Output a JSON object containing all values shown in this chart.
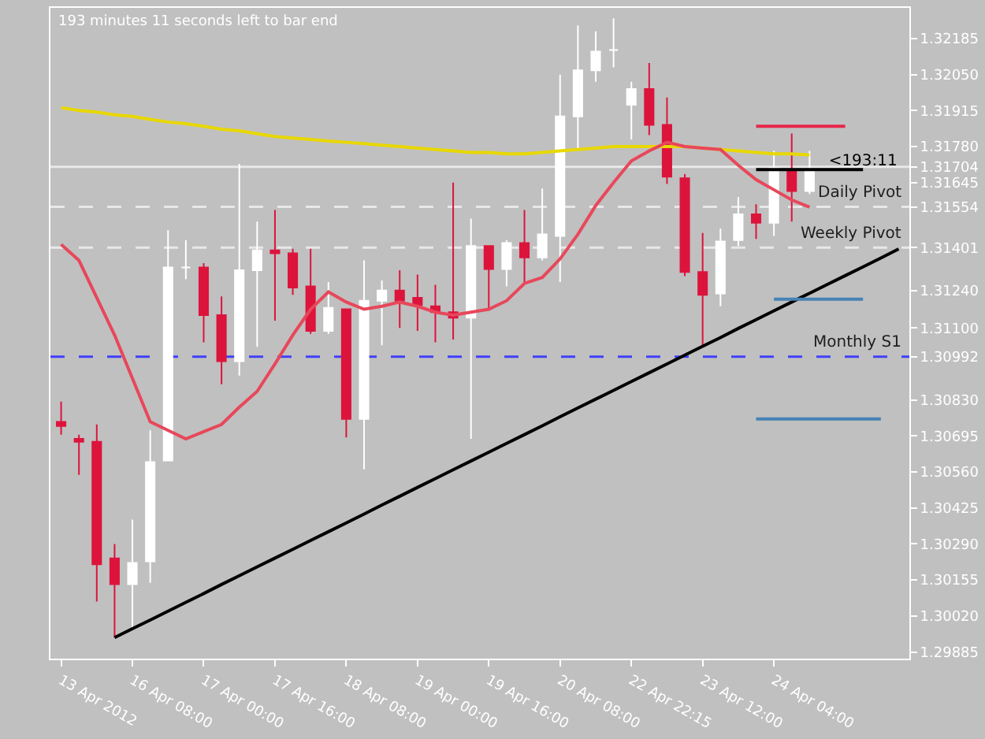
{
  "chart_data": {
    "type": "candlestick",
    "categories": [
      "13 Apr 2012",
      null,
      null,
      null,
      "16 Apr 08:00",
      null,
      null,
      null,
      "17 Apr 00:00",
      null,
      null,
      null,
      "17 Apr 16:00",
      null,
      null,
      null,
      "18 Apr 08:00",
      null,
      null,
      null,
      "19 Apr 00:00",
      null,
      null,
      null,
      "19 Apr 16:00",
      null,
      null,
      null,
      "20 Apr 08:00",
      null,
      null,
      null,
      "22 Apr 22:15",
      null,
      null,
      null,
      "23 Apr 12:00",
      null,
      null,
      null,
      "24 Apr 04:00",
      null,
      null,
      null,
      null,
      null,
      null,
      null
    ],
    "ohlc": [
      [
        1.30748,
        1.30824,
        1.307,
        1.30732
      ],
      [
        1.30684,
        1.307,
        1.30549,
        1.30673
      ],
      [
        1.30673,
        1.30738,
        1.30074,
        1.30214
      ],
      [
        1.30236,
        1.3029,
        1.29939,
        1.30139
      ],
      [
        1.30139,
        1.30381,
        1.29971,
        1.30219
      ],
      [
        1.30225,
        1.30716,
        1.30144,
        1.30597
      ],
      [
        1.30603,
        1.31467,
        1.30603,
        1.31327
      ],
      [
        1.31327,
        1.31429,
        1.31283,
        1.31327
      ],
      [
        1.31327,
        1.31343,
        1.31046,
        1.31148
      ],
      [
        1.31148,
        1.31218,
        1.30889,
        1.30975
      ],
      [
        1.30975,
        1.31715,
        1.30921,
        1.31316
      ],
      [
        1.31316,
        1.31499,
        1.31029,
        1.31391
      ],
      [
        1.31391,
        1.31542,
        1.31127,
        1.3138
      ],
      [
        1.3138,
        1.31397,
        1.31224,
        1.31251
      ],
      [
        1.31256,
        1.31397,
        1.31078,
        1.31089
      ],
      [
        1.31089,
        1.31272,
        1.31078,
        1.31175
      ],
      [
        1.3117,
        1.3117,
        1.30689,
        1.30759
      ],
      [
        1.30759,
        1.31353,
        1.3057,
        1.31202
      ],
      [
        1.31202,
        1.31278,
        1.31035,
        1.3124
      ],
      [
        1.3124,
        1.31316,
        1.311,
        1.31202
      ],
      [
        1.31213,
        1.313,
        1.31089,
        1.31186
      ],
      [
        1.31181,
        1.31262,
        1.31046,
        1.31159
      ],
      [
        1.31159,
        1.31645,
        1.31056,
        1.31138
      ],
      [
        1.31138,
        1.3151,
        1.30684,
        1.31407
      ],
      [
        1.31407,
        1.31407,
        1.31165,
        1.31321
      ],
      [
        1.31321,
        1.31429,
        1.31256,
        1.31418
      ],
      [
        1.31418,
        1.31542,
        1.31272,
        1.31364
      ],
      [
        1.31364,
        1.31623,
        1.31353,
        1.31451
      ],
      [
        1.31445,
        1.3205,
        1.31272,
        1.31893
      ],
      [
        1.31893,
        1.32234,
        1.31764,
        1.32066
      ],
      [
        1.32066,
        1.32212,
        1.32023,
        1.32136
      ],
      [
        1.32142,
        1.32261,
        1.32077,
        1.32142
      ],
      [
        1.31937,
        1.32023,
        1.31807,
        1.31996
      ],
      [
        1.31996,
        1.32093,
        1.31823,
        1.31861
      ],
      [
        1.31861,
        1.31964,
        1.3164,
        1.31667
      ],
      [
        1.31661,
        1.31677,
        1.31294,
        1.3131
      ],
      [
        1.3131,
        1.31456,
        1.31029,
        1.31224
      ],
      [
        1.31229,
        1.31472,
        1.31181,
        1.31424
      ],
      [
        1.31429,
        1.31591,
        1.31407,
        1.31526
      ],
      [
        1.31526,
        1.31564,
        1.31434,
        1.31494
      ],
      [
        1.31494,
        1.31764,
        1.31445,
        1.31699
      ],
      [
        1.31694,
        1.31829,
        1.31499,
        1.31613
      ],
      [
        1.31613,
        1.31764,
        1.31602,
        1.31688
      ],
      null,
      null,
      null,
      null,
      null
    ],
    "colors": [
      "#dc143c",
      "#dc143c",
      "#dc143c",
      "#dc143c",
      "#ffffff",
      "#ffffff",
      "#ffffff",
      "#ffffff",
      "#dc143c",
      "#dc143c",
      "#ffffff",
      "#ffffff",
      "#dc143c",
      "#dc143c",
      "#dc143c",
      "#ffffff",
      "#dc143c",
      "#ffffff",
      "#ffffff",
      "#dc143c",
      "#dc143c",
      "#dc143c",
      "#dc143c",
      "#ffffff",
      "#dc143c",
      "#ffffff",
      "#dc143c",
      "#ffffff",
      "#ffffff",
      "#ffffff",
      "#ffffff",
      "#ffffff",
      "#ffffff",
      "#dc143c",
      "#dc143c",
      "#dc143c",
      "#dc143c",
      "#ffffff",
      "#ffffff",
      "#dc143c",
      "#ffffff",
      "#dc143c",
      "#ffffff",
      null,
      null,
      null,
      null,
      null
    ],
    "series": [
      {
        "type": "line",
        "color": "#e8d800",
        "values": [
          1.31926,
          1.31915,
          1.31909,
          1.31899,
          1.31893,
          1.31882,
          1.31872,
          1.31866,
          1.31856,
          1.31845,
          1.31839,
          1.31828,
          1.31818,
          1.31812,
          1.31807,
          1.31801,
          1.31796,
          1.31791,
          1.31785,
          1.3178,
          1.31774,
          1.31769,
          1.31764,
          1.31758,
          1.31758,
          1.31753,
          1.31753,
          1.31758,
          1.31764,
          1.31769,
          1.31774,
          1.3178,
          1.3178,
          1.3178,
          1.3178,
          1.3178,
          1.31774,
          1.31769,
          1.31764,
          1.31758,
          1.31753,
          1.31753,
          1.31748,
          null,
          null,
          null,
          null,
          null
        ]
      },
      {
        "type": "line",
        "color": "#e8475a",
        "values": [
          1.31413,
          1.31353,
          1.31213,
          1.31073,
          1.30911,
          1.30748,
          1.30716,
          1.30684,
          1.30711,
          1.30738,
          1.30803,
          1.30862,
          1.30965,
          1.31073,
          1.3117,
          1.31235,
          1.31197,
          1.3117,
          1.31181,
          1.31197,
          1.31181,
          1.31159,
          1.31148,
          1.31159,
          1.3117,
          1.31202,
          1.31267,
          1.31289,
          1.31359,
          1.31451,
          1.31559,
          1.31645,
          1.31726,
          1.31764,
          1.31796,
          1.3178,
          1.31774,
          1.31769,
          1.3171,
          1.31656,
          1.31618,
          1.3158,
          1.31553,
          null,
          null,
          null,
          null,
          null
        ]
      },
      {
        "type": "line",
        "color": "#000000",
        "values": [
          null,
          null,
          null,
          1.29939,
          1.29972,
          1.30005,
          1.30038,
          1.30071,
          1.30104,
          1.30138,
          1.30171,
          1.30204,
          1.30237,
          1.3027,
          1.30303,
          1.30336,
          1.30369,
          1.30402,
          1.30436,
          1.30469,
          1.30502,
          1.30535,
          1.30568,
          1.30601,
          1.30634,
          1.30667,
          1.307,
          1.30733,
          1.30767,
          1.308,
          1.30833,
          1.30866,
          1.30899,
          1.30932,
          1.30965,
          1.30998,
          1.31031,
          1.31064,
          1.31098,
          1.31131,
          1.31164,
          1.31197,
          1.3123,
          1.31263,
          1.31296,
          1.31329,
          1.31362,
          1.31396
        ]
      },
      {
        "type": "line",
        "color": "#e8264b",
        "values": [
          null,
          null,
          null,
          null,
          null,
          null,
          null,
          null,
          null,
          null,
          null,
          null,
          null,
          null,
          null,
          null,
          null,
          null,
          null,
          null,
          null,
          null,
          null,
          null,
          null,
          null,
          null,
          null,
          null,
          null,
          null,
          null,
          null,
          null,
          null,
          null,
          null,
          null,
          null,
          1.31856,
          1.31856,
          1.31856,
          1.31856,
          1.31856,
          1.31856,
          null,
          null,
          null
        ]
      },
      {
        "type": "line",
        "name": "<193:11",
        "color": "#000000",
        "values": [
          null,
          null,
          null,
          null,
          null,
          null,
          null,
          null,
          null,
          null,
          null,
          null,
          null,
          null,
          null,
          null,
          null,
          null,
          null,
          null,
          null,
          null,
          null,
          null,
          null,
          null,
          null,
          null,
          null,
          null,
          null,
          null,
          null,
          null,
          null,
          null,
          null,
          null,
          null,
          1.31694,
          1.31694,
          1.31694,
          1.31694,
          1.31694,
          1.31694,
          1.31694,
          null,
          null
        ]
      },
      {
        "type": "line",
        "color": "#4682b4",
        "values": [
          null,
          null,
          null,
          null,
          null,
          null,
          null,
          null,
          null,
          null,
          null,
          null,
          null,
          null,
          null,
          null,
          null,
          null,
          null,
          null,
          null,
          null,
          null,
          null,
          null,
          null,
          null,
          null,
          null,
          null,
          null,
          null,
          null,
          null,
          null,
          null,
          null,
          null,
          null,
          null,
          1.31208,
          1.31208,
          1.31208,
          1.31208,
          1.31208,
          1.31208,
          null,
          null
        ]
      },
      {
        "type": "line",
        "color": "#4682b4",
        "values": [
          null,
          null,
          null,
          null,
          null,
          null,
          null,
          null,
          null,
          null,
          null,
          null,
          null,
          null,
          null,
          null,
          null,
          null,
          null,
          null,
          null,
          null,
          null,
          null,
          null,
          null,
          null,
          null,
          null,
          null,
          null,
          null,
          null,
          null,
          null,
          null,
          null,
          null,
          null,
          1.30759,
          1.30759,
          1.30759,
          1.30759,
          1.30759,
          1.30759,
          1.30759,
          1.30759,
          null
        ]
      }
    ],
    "ylim": [
      1.2986,
      1.323
    ],
    "yticks": [
      1.32185,
      {
        "value": 1.3205,
        "label": "1.32050"
      },
      1.31915,
      {
        "value": 1.3178,
        "label": "1.31780"
      },
      1.31704,
      1.31645,
      1.31554,
      1.31401,
      {
        "value": 1.3124,
        "label": "1.31240"
      },
      {
        "value": 1.311,
        "label": "1.31100"
      },
      1.30992,
      {
        "value": 1.3083,
        "label": "1.30830"
      },
      1.30695,
      {
        "value": 1.3056,
        "label": "1.30560"
      },
      1.30425,
      {
        "value": 1.3029,
        "label": "1.30290"
      },
      1.30155,
      {
        "value": 1.3002,
        "label": "1.30020"
      },
      1.29885
    ],
    "ref_lines": [
      {
        "axis": "y",
        "value": 1.31704,
        "label": null,
        "color": "#e8e8e8",
        "line_style": "solid"
      },
      {
        "axis": "y",
        "value": 1.31554,
        "label": "Daily Pivot",
        "color": "#e8e8e8",
        "line_style": "dashed"
      },
      {
        "axis": "y",
        "value": 1.31401,
        "label": "Weekly Pivot",
        "color": "#e8e8e8",
        "line_style": "dashed"
      },
      {
        "axis": "y",
        "value": 1.30992,
        "label": "Monthly S1",
        "color": "#4040ff",
        "line_style": "dashed"
      }
    ],
    "annotations": [
      "193 minutes 11 seconds left to bar end"
    ]
  }
}
